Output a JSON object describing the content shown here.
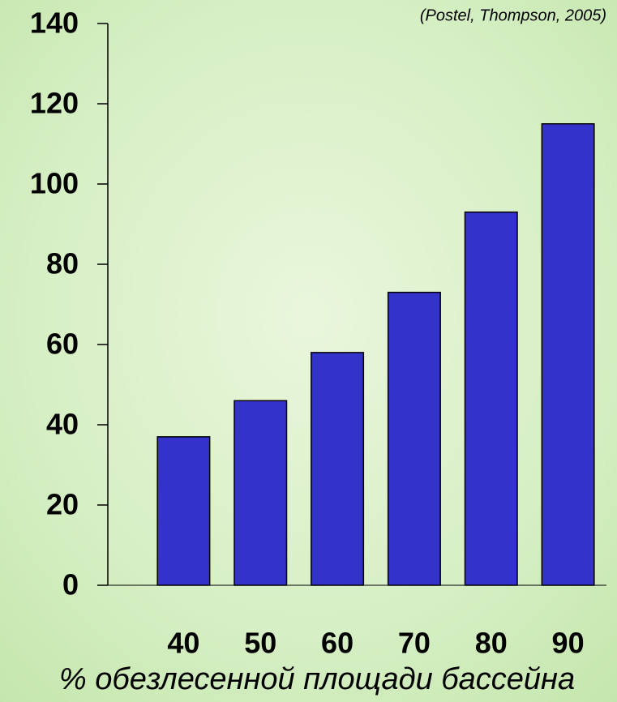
{
  "chart_data": {
    "type": "bar",
    "subtitle": "(Postel, Thompson, 2005)",
    "x_label": "% обезлесенной площади бассейна",
    "categories": [
      "40",
      "50",
      "60",
      "70",
      "80",
      "90"
    ],
    "values": [
      37,
      46,
      58,
      73,
      93,
      115
    ],
    "color": "#3333cc",
    "ylim": [
      0,
      140
    ],
    "yticks": [
      0,
      20,
      40,
      60,
      80,
      100,
      120,
      140
    ]
  }
}
